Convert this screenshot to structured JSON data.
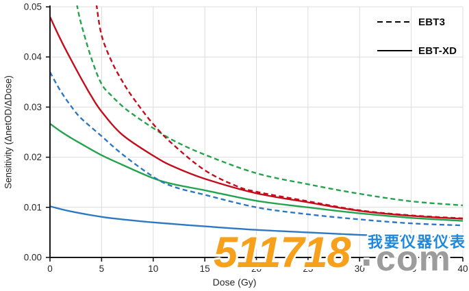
{
  "chart_data": {
    "type": "line",
    "title": "",
    "xlabel": "Dose (Gy)",
    "ylabel": "Sensitivity (ΔnetOD/ΔDose)",
    "xlim": [
      0,
      40
    ],
    "ylim": [
      0,
      0.05
    ],
    "x_ticks": [
      0,
      5,
      10,
      15,
      20,
      25,
      30,
      35,
      40
    ],
    "y_ticks": [
      "0.00",
      "0.01",
      "0.02",
      "0.03",
      "0.04",
      "0.05"
    ],
    "grid": "on",
    "legend_position": "top-right inside, no frame",
    "legend": [
      {
        "label": "EBT3",
        "style": "dashed"
      },
      {
        "label": "EBT-XD",
        "style": "solid"
      }
    ],
    "axis_color": "#171717",
    "grid_color": "#dcdcdc",
    "series": [
      {
        "name": "EBT-XD blue",
        "film": "EBT-XD",
        "style": "solid",
        "color": "#2d78c2",
        "x": [
          0,
          2,
          5,
          7,
          10,
          15,
          20,
          25,
          30,
          35,
          40
        ],
        "y": [
          0.0102,
          0.0092,
          0.0081,
          0.0076,
          0.007,
          0.0062,
          0.0055,
          0.005,
          0.0045,
          0.0042,
          0.004
        ]
      },
      {
        "name": "EBT-XD green",
        "film": "EBT-XD",
        "style": "solid",
        "color": "#22a34c",
        "x": [
          0,
          1,
          2,
          3,
          5,
          7,
          10,
          12,
          15,
          20,
          25,
          30,
          35,
          40
        ],
        "y": [
          0.0267,
          0.0252,
          0.0239,
          0.0227,
          0.0204,
          0.0185,
          0.0158,
          0.0146,
          0.0134,
          0.0113,
          0.01,
          0.0088,
          0.0079,
          0.0073
        ]
      },
      {
        "name": "EBT-XD red",
        "film": "EBT-XD",
        "style": "solid",
        "color": "#c30d1b",
        "x": [
          0,
          1,
          2,
          3,
          4,
          5,
          7,
          10,
          12,
          15,
          20,
          25,
          30,
          35,
          40
        ],
        "y": [
          0.048,
          0.0436,
          0.0396,
          0.0358,
          0.0322,
          0.0291,
          0.0245,
          0.0203,
          0.0181,
          0.0157,
          0.0128,
          0.011,
          0.0093,
          0.0083,
          0.0077
        ]
      },
      {
        "name": "EBT3 blue",
        "film": "EBT3",
        "style": "dashed",
        "color": "#2d78c2",
        "x": [
          0,
          1,
          2,
          3,
          5,
          7,
          10,
          12,
          15,
          20,
          25,
          30,
          35,
          40
        ],
        "y": [
          0.037,
          0.0333,
          0.0303,
          0.0278,
          0.0242,
          0.0206,
          0.0161,
          0.0141,
          0.0125,
          0.01,
          0.0086,
          0.0076,
          0.0068,
          0.0064
        ]
      },
      {
        "name": "EBT3 green",
        "film": "EBT3",
        "style": "dashed",
        "color": "#22a34c",
        "x": [
          2.6,
          3,
          4,
          5,
          6,
          7,
          8,
          10,
          12,
          15,
          20,
          25,
          30,
          35,
          40
        ],
        "y": [
          0.0505,
          0.0468,
          0.0398,
          0.0346,
          0.0322,
          0.0302,
          0.0286,
          0.0258,
          0.0233,
          0.0205,
          0.0168,
          0.0146,
          0.0127,
          0.0112,
          0.0104
        ]
      },
      {
        "name": "EBT3 red",
        "film": "EBT3",
        "style": "dashed",
        "color": "#c30d1b",
        "x": [
          4.5,
          5,
          6,
          7,
          8,
          10,
          12,
          15,
          18,
          20,
          25,
          30,
          35,
          40
        ],
        "y": [
          0.0505,
          0.0443,
          0.039,
          0.0352,
          0.032,
          0.0266,
          0.0224,
          0.0174,
          0.0143,
          0.0131,
          0.0112,
          0.0094,
          0.0084,
          0.0078
        ]
      }
    ]
  },
  "watermark": {
    "number": "511718",
    "dot": ".",
    "tld": "com",
    "cn_text": "我要仪器仪表",
    "orange": "#f6a01b",
    "gray": "#9c9c9c",
    "blue": "#1f88dd"
  }
}
